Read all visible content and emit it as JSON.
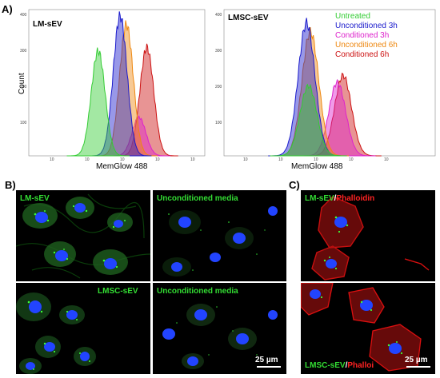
{
  "panels": {
    "a_label": "A)",
    "b_label": "B)",
    "c_label": "C)"
  },
  "histograms": {
    "left_title": "LM-sEV",
    "right_title": "LMSC-sEV",
    "ylabel": "Count",
    "xlabel": "MemGlow 488",
    "y_ticks": [
      "400",
      "300",
      "200",
      "100"
    ],
    "x_ticks": [
      "10",
      "10",
      "10",
      "10",
      "10"
    ],
    "legend": [
      {
        "label": "Untreated",
        "color": "#33cc33"
      },
      {
        "label": "Unconditioned 3h",
        "color": "#1a1acc"
      },
      {
        "label": "Conditioned 3h",
        "color": "#dd22cc"
      },
      {
        "label": "Unconditioned 6h",
        "color": "#ee8811"
      },
      {
        "label": "Conditioned 6h",
        "color": "#cc1111"
      }
    ]
  },
  "chart_data": [
    {
      "type": "area",
      "title": "LM-sEV",
      "xlabel": "MemGlow 488",
      "ylabel": "Count",
      "x_scale": "log",
      "ylim": [
        0,
        400
      ],
      "series": [
        {
          "name": "Untreated",
          "peak_x": 1.6,
          "peak_y": 300
        },
        {
          "name": "Unconditioned 3h",
          "peak_x": 2.3,
          "peak_y": 400
        },
        {
          "name": "Unconditioned 6h",
          "peak_x": 2.5,
          "peak_y": 375
        },
        {
          "name": "Conditioned 3h",
          "peak_x": 2.9,
          "peak_y": 110
        },
        {
          "name": "Conditioned 6h",
          "peak_x": 3.15,
          "peak_y": 310
        }
      ]
    },
    {
      "type": "area",
      "title": "LMSC-sEV",
      "xlabel": "MemGlow 488",
      "ylabel": "Count",
      "x_scale": "log",
      "ylim": [
        0,
        400
      ],
      "series": [
        {
          "name": "Untreated",
          "peak_x": 1.7,
          "peak_y": 200
        },
        {
          "name": "Unconditioned 3h",
          "peak_x": 1.65,
          "peak_y": 380
        },
        {
          "name": "Unconditioned 6h",
          "peak_x": 1.75,
          "peak_y": 355
        },
        {
          "name": "Conditioned 3h",
          "peak_x": 2.45,
          "peak_y": 210
        },
        {
          "name": "Conditioned 6h",
          "peak_x": 2.6,
          "peak_y": 230
        }
      ]
    }
  ],
  "microscopy": {
    "b_top_left": "LM-sEV",
    "b_top_right": "Unconditioned media",
    "b_bottom_left": "LMSC-sEV",
    "b_bottom_right": "Unconditioned media",
    "c_top_a": "LM-sEV",
    "c_top_sep": "/",
    "c_top_b": "Phalloidin",
    "c_bottom_a": "LMSC-sEV",
    "c_bottom_sep": "/",
    "c_bottom_b": "Phalloi",
    "scale_b": "25 µm",
    "scale_c": "25 µm"
  },
  "colors": {
    "green_label": "#33dd33",
    "red_label": "#ff2222",
    "nucleus": "#2244ff",
    "actin": "#ee1111"
  }
}
